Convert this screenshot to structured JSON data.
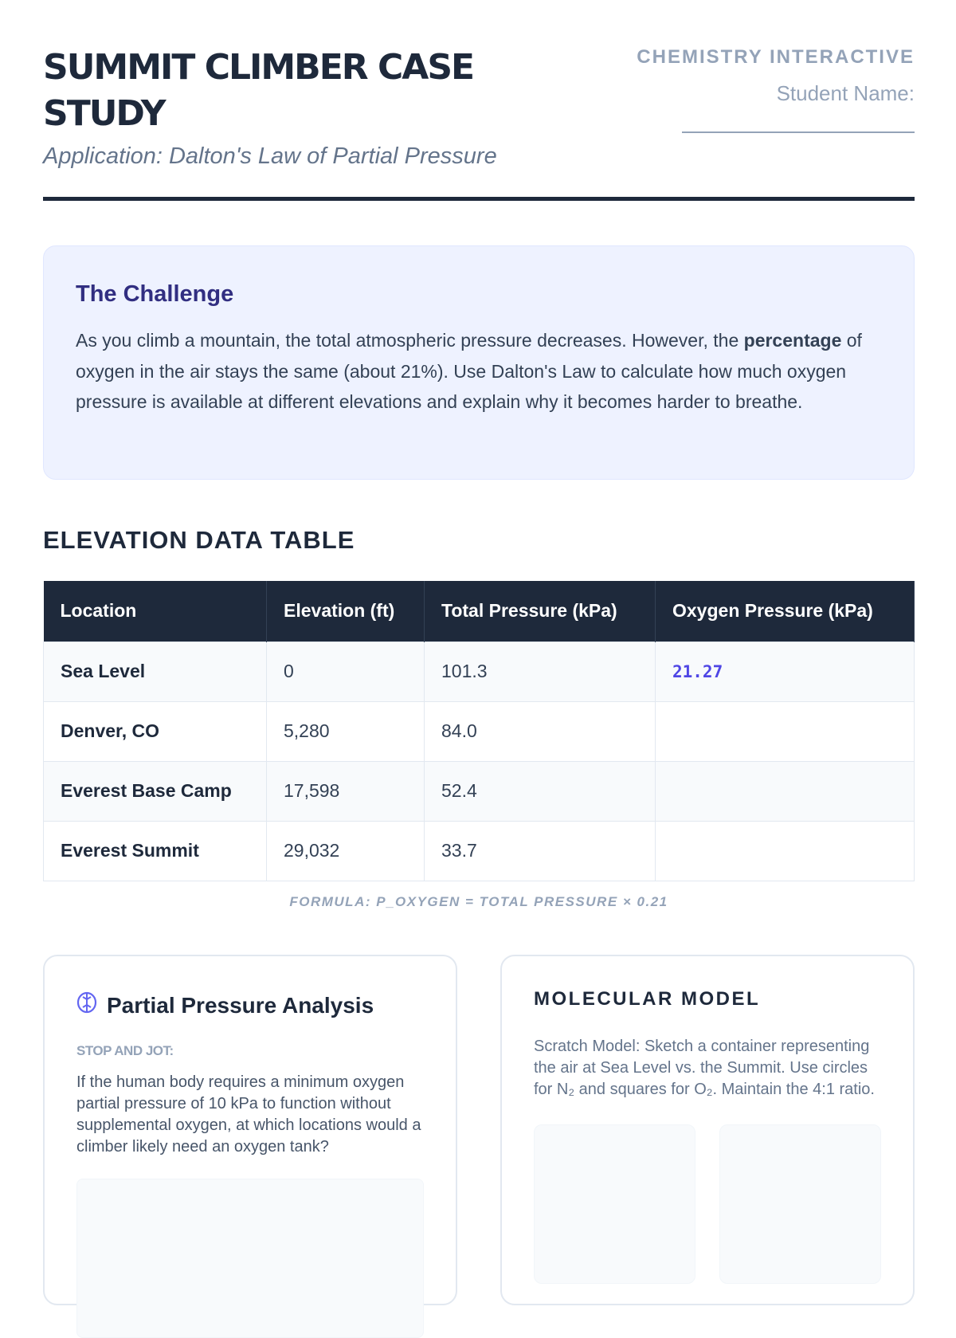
{
  "header": {
    "title": "Summit Climber Case Study",
    "subtitle": "Application: Dalton's Law of Partial Pressure",
    "brand": "CHEMISTRY INTERACTIVE",
    "student_label": "Student Name:"
  },
  "challenge": {
    "heading": "The Challenge",
    "text_1": "As you climb a mountain, the total atmospheric pressure decreases. However, the ",
    "bold": "percentage",
    "text_2": " of oxygen in the air stays the same (about 21%). Use Dalton's Law to calculate how much oxygen pressure is available at different elevations and explain why it becomes harder to breathe."
  },
  "table": {
    "heading": "ELEVATION DATA TABLE",
    "columns": [
      "Location",
      "Elevation (ft)",
      "Total Pressure (kPa)",
      "Oxygen Pressure (kPa)"
    ],
    "rows": [
      [
        "Sea Level",
        "0",
        "101.3",
        "21.27"
      ],
      [
        "Denver, CO",
        "5,280",
        "84.0",
        ""
      ],
      [
        "Everest Base Camp",
        "17,598",
        "52.4",
        ""
      ],
      [
        "Everest Summit",
        "29,032",
        "33.7",
        ""
      ]
    ],
    "formula": "FORMULA: P_OXYGEN = TOTAL PRESSURE × 0.21"
  },
  "analysis": {
    "icon": "brain-icon",
    "heading": "Partial Pressure Analysis",
    "label": "STOP AND JOT:",
    "question": "If the human body requires a minimum oxygen partial pressure of 10 kPa to function without supplemental oxygen, at which locations would a climber likely need an oxygen tank?"
  },
  "model": {
    "heading": "MOLECULAR MODEL",
    "text": "Scratch Model: Sketch a container representing the air at Sea Level vs. the Summit. Use circles for N₂ and squares for O₂. Maintain the 4:1 ratio."
  },
  "colors": {
    "accent": "#4f46e5",
    "dark": "#1e293b",
    "challenge_bg": "#eef2ff"
  }
}
